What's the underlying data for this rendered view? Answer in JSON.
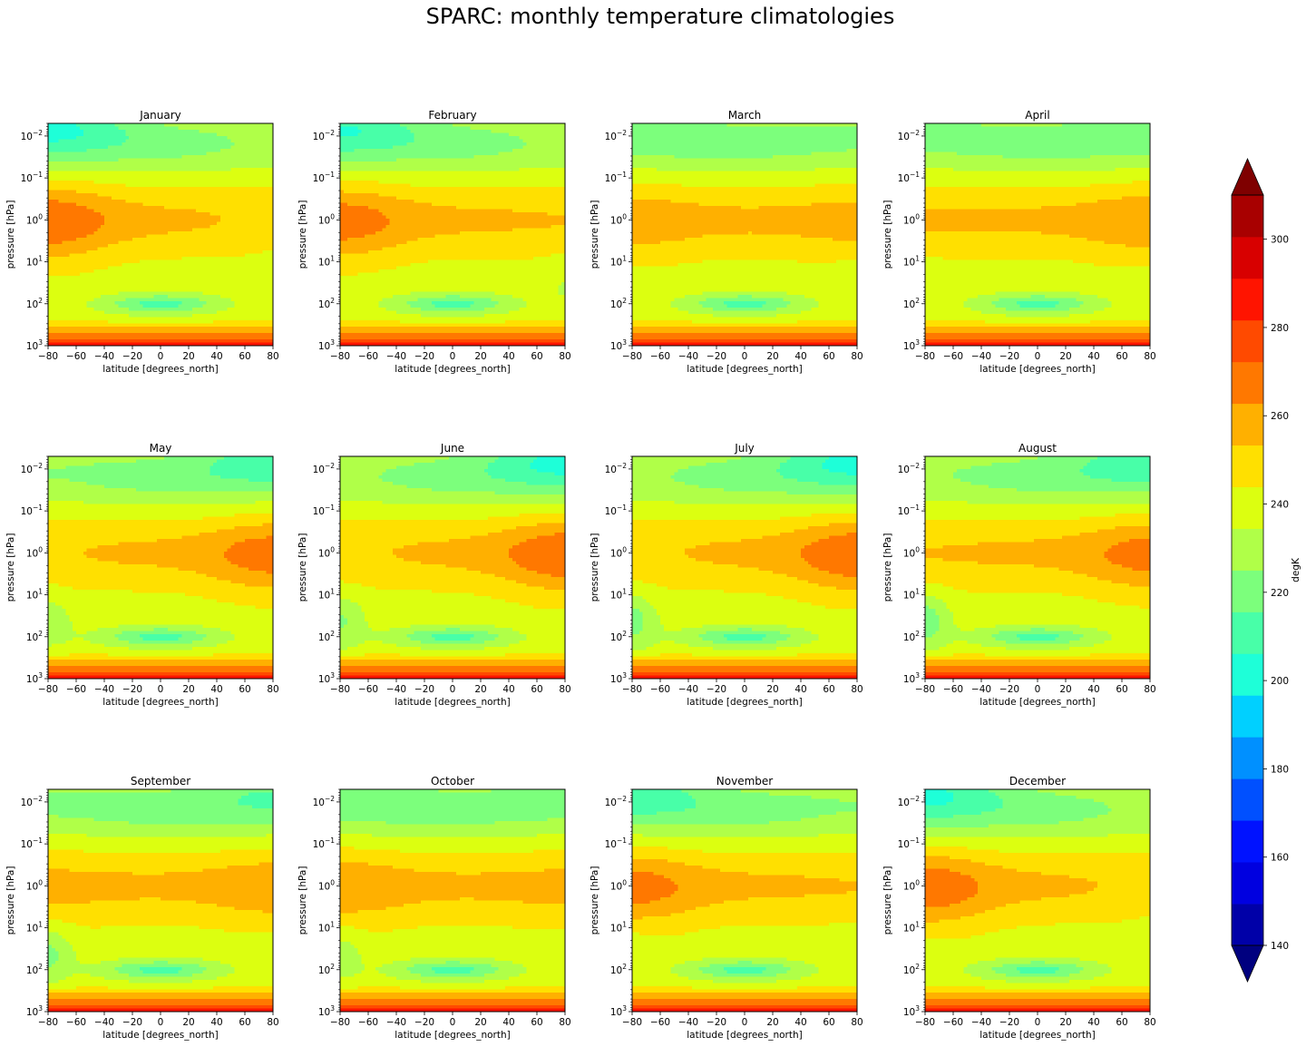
{
  "chart_data": {
    "type": "heatmap",
    "subtype": "filled-contour small multiples",
    "title": "SPARC: monthly temperature climatologies",
    "xlabel": "latitude [degrees_north]",
    "ylabel": "pressure [hPa]",
    "x_ticks": [
      "−80",
      "−60",
      "−40",
      "−20",
      "0",
      "20",
      "40",
      "60",
      "80"
    ],
    "x_tick_values": [
      -80,
      -60,
      -40,
      -20,
      0,
      20,
      40,
      60,
      80
    ],
    "xlim": [
      -80,
      80
    ],
    "y_scale": "log",
    "y_inverted": true,
    "ylim": [
      1000,
      0.005
    ],
    "y_tick_values": [
      0.01,
      0.1,
      1,
      10,
      100,
      1000
    ],
    "y_tick_exponents": [
      "−2",
      "−1",
      "0",
      "1",
      "2",
      "3"
    ],
    "y_tick_base": "10",
    "panels": [
      {
        "month": "January",
        "south_strat_warm": 1.0,
        "north_strat_warm": 0.05,
        "south_upper_cold": 1.0,
        "north_upper_cold": 0.0,
        "south_tropo_cold": 0.0,
        "north_tropo_cold": 0.3
      },
      {
        "month": "February",
        "south_strat_warm": 0.85,
        "north_strat_warm": 0.15,
        "south_upper_cold": 0.9,
        "north_upper_cold": 0.0,
        "south_tropo_cold": 0.0,
        "north_tropo_cold": 0.35
      },
      {
        "month": "March",
        "south_strat_warm": 0.45,
        "north_strat_warm": 0.35,
        "south_upper_cold": 0.45,
        "north_upper_cold": 0.2,
        "south_tropo_cold": 0.1,
        "north_tropo_cold": 0.25
      },
      {
        "month": "April",
        "south_strat_warm": 0.2,
        "north_strat_warm": 0.55,
        "south_upper_cold": 0.25,
        "north_upper_cold": 0.4,
        "south_tropo_cold": 0.25,
        "north_tropo_cold": 0.1
      },
      {
        "month": "May",
        "south_strat_warm": 0.1,
        "north_strat_warm": 0.85,
        "south_upper_cold": 0.1,
        "north_upper_cold": 0.75,
        "south_tropo_cold": 0.55,
        "north_tropo_cold": 0.0
      },
      {
        "month": "June",
        "south_strat_warm": 0.05,
        "north_strat_warm": 1.0,
        "south_upper_cold": 0.0,
        "north_upper_cold": 1.0,
        "south_tropo_cold": 0.75,
        "north_tropo_cold": 0.0
      },
      {
        "month": "July",
        "south_strat_warm": 0.05,
        "north_strat_warm": 1.0,
        "south_upper_cold": 0.0,
        "north_upper_cold": 1.0,
        "south_tropo_cold": 0.9,
        "north_tropo_cold": 0.0
      },
      {
        "month": "August",
        "south_strat_warm": 0.15,
        "north_strat_warm": 0.8,
        "south_upper_cold": 0.05,
        "north_upper_cold": 0.8,
        "south_tropo_cold": 1.0,
        "north_tropo_cold": 0.0
      },
      {
        "month": "September",
        "south_strat_warm": 0.3,
        "north_strat_warm": 0.5,
        "south_upper_cold": 0.2,
        "north_upper_cold": 0.55,
        "south_tropo_cold": 0.85,
        "north_tropo_cold": 0.05
      },
      {
        "month": "October",
        "south_strat_warm": 0.55,
        "north_strat_warm": 0.3,
        "south_upper_cold": 0.45,
        "north_upper_cold": 0.3,
        "south_tropo_cold": 0.5,
        "north_tropo_cold": 0.1
      },
      {
        "month": "November",
        "south_strat_warm": 0.8,
        "north_strat_warm": 0.15,
        "south_upper_cold": 0.75,
        "north_upper_cold": 0.1,
        "south_tropo_cold": 0.2,
        "north_tropo_cold": 0.2
      },
      {
        "month": "December",
        "south_strat_warm": 0.95,
        "north_strat_warm": 0.05,
        "south_upper_cold": 0.95,
        "north_upper_cold": 0.0,
        "south_tropo_cold": 0.05,
        "north_tropo_cold": 0.3
      }
    ],
    "colorbar": {
      "label": "degK",
      "vmin": 140,
      "vmax": 310,
      "step": 10,
      "extend": "both",
      "tick_values": [
        140,
        160,
        180,
        200,
        220,
        240,
        260,
        280,
        300
      ],
      "level_colors": [
        "#0000a8",
        "#0000e0",
        "#0012ff",
        "#0050ff",
        "#0090ff",
        "#00d0ff",
        "#1effd8",
        "#48ffa8",
        "#7cff7c",
        "#b0ff48",
        "#dcff10",
        "#ffe000",
        "#ffb000",
        "#ff7800",
        "#ff4a00",
        "#ff1400",
        "#d80000",
        "#a80000"
      ],
      "under_color": "#00007f",
      "over_color": "#7f0000"
    }
  }
}
